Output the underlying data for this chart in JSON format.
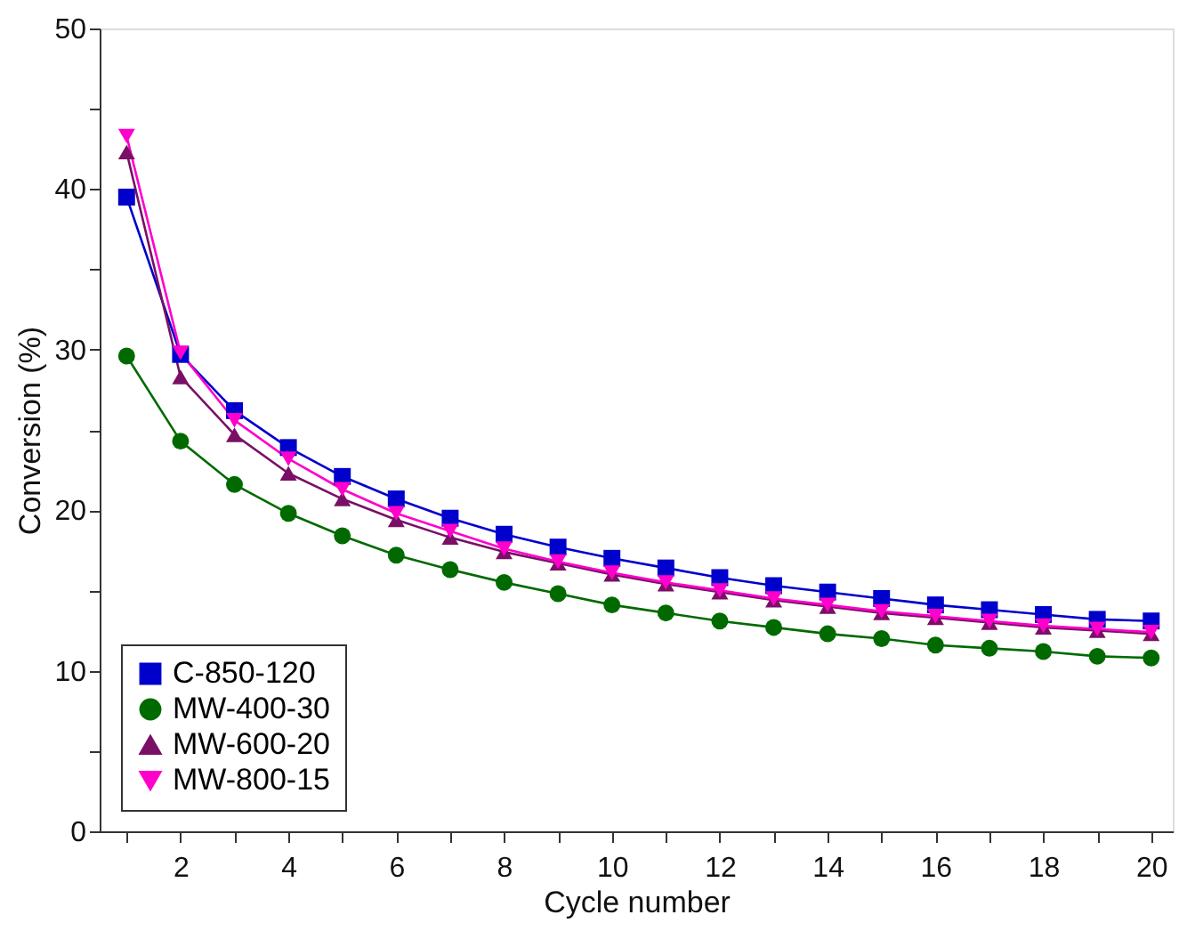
{
  "chart_data": {
    "type": "line",
    "xlabel": "Cycle number",
    "ylabel": "Conversion (%)",
    "x": [
      1,
      2,
      3,
      4,
      5,
      6,
      7,
      8,
      9,
      10,
      11,
      12,
      13,
      14,
      15,
      16,
      17,
      18,
      19,
      20
    ],
    "xlim": [
      0.5,
      20.4
    ],
    "ylim": [
      0,
      50
    ],
    "xticks": [
      {
        "value": 1,
        "label": null
      },
      2,
      {
        "value": 3,
        "label": null
      },
      4,
      {
        "value": 5,
        "label": null
      },
      6,
      {
        "value": 7,
        "label": null
      },
      8,
      {
        "value": 9,
        "label": null
      },
      10,
      {
        "value": 11,
        "label": null
      },
      12,
      {
        "value": 13,
        "label": null
      },
      14,
      {
        "value": 15,
        "label": null
      },
      16,
      {
        "value": 17,
        "label": null
      },
      18,
      {
        "value": 19,
        "label": null
      },
      20
    ],
    "yticks": [
      0,
      {
        "value": 5,
        "label": null
      },
      10,
      {
        "value": 15,
        "label": null
      },
      20,
      {
        "value": 25,
        "label": null
      },
      30,
      {
        "value": 35,
        "label": null
      },
      40,
      {
        "value": 45,
        "label": null
      },
      50
    ],
    "grid": false,
    "legend": "bottom left",
    "line_style": "solid",
    "series": [
      {
        "name": "C-850-120",
        "color": "#0000cc",
        "marker": "square",
        "values": [
          39.5,
          29.7,
          26.2,
          23.9,
          22.1,
          20.7,
          19.5,
          18.5,
          17.7,
          17.0,
          16.4,
          15.8,
          15.3,
          14.9,
          14.5,
          14.1,
          13.8,
          13.5,
          13.2,
          13.1
        ]
      },
      {
        "name": "MW-400-30",
        "color": "#006a00",
        "marker": "circle",
        "values": [
          29.6,
          24.3,
          21.6,
          19.8,
          18.4,
          17.2,
          16.3,
          15.5,
          14.8,
          14.1,
          13.6,
          13.1,
          12.7,
          12.3,
          12.0,
          11.6,
          11.4,
          11.2,
          10.9,
          10.8
        ]
      },
      {
        "name": "MW-600-20",
        "color": "#7a1066",
        "marker": "triangle",
        "values": [
          42.3,
          28.3,
          24.7,
          22.3,
          20.7,
          19.4,
          18.3,
          17.4,
          16.7,
          16.0,
          15.4,
          14.9,
          14.4,
          14.0,
          13.6,
          13.3,
          13.0,
          12.7,
          12.5,
          12.3
        ]
      },
      {
        "name": "MW-800-15",
        "color": "#ff00cc",
        "marker": "triangle-down",
        "values": [
          43.3,
          29.8,
          25.6,
          23.2,
          21.3,
          19.8,
          18.7,
          17.6,
          16.8,
          16.1,
          15.5,
          15.0,
          14.5,
          14.1,
          13.7,
          13.4,
          13.1,
          12.8,
          12.6,
          12.4
        ]
      }
    ]
  }
}
